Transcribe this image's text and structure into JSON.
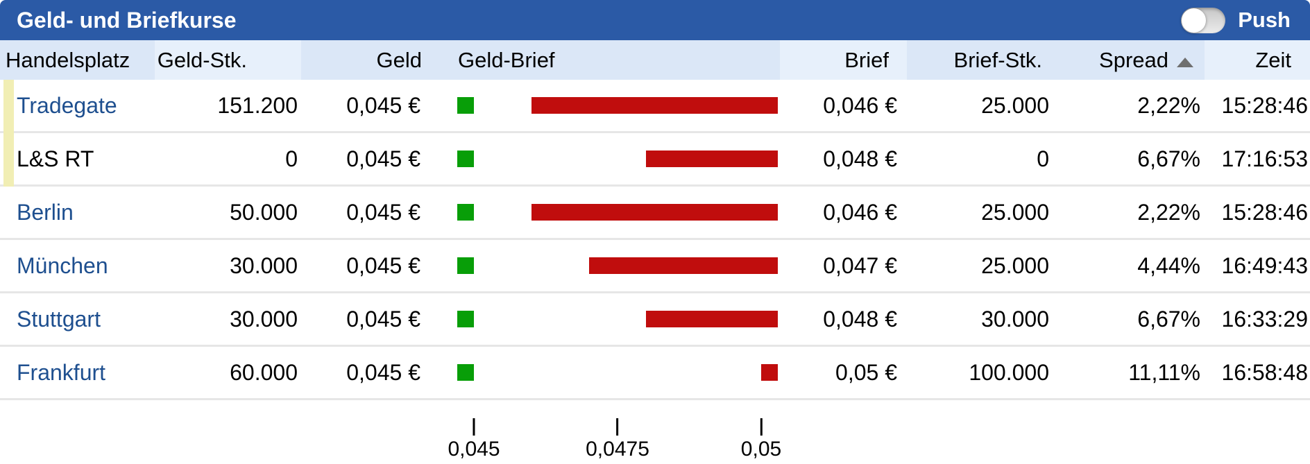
{
  "title_bar": {
    "title": "Geld- und Briefkurse",
    "push_label": "Push",
    "push_state": "off"
  },
  "table": {
    "columns": [
      "Handelsplatz",
      "Geld-Stk.",
      "Geld",
      "Geld-Brief",
      "Brief",
      "Brief-Stk.",
      "Spread",
      "Zeit"
    ],
    "sort": {
      "column": "Spread",
      "direction": "ascending"
    },
    "rows": [
      {
        "name": "Tradegate",
        "link": true,
        "marked": true,
        "geld_stk": "151.200",
        "geld": "0,045 €",
        "geld_value": 0.045,
        "brief": "0,046 €",
        "brief_value": 0.046,
        "brief_stk": "25.000",
        "spread": "2,22%",
        "zeit": "15:28:46"
      },
      {
        "name": "L&S RT",
        "link": false,
        "marked": true,
        "geld_stk": "0",
        "geld": "0,045 €",
        "geld_value": 0.045,
        "brief": "0,048 €",
        "brief_value": 0.048,
        "brief_stk": "0",
        "spread": "6,67%",
        "zeit": "17:16:53"
      },
      {
        "name": "Berlin",
        "link": true,
        "marked": false,
        "geld_stk": "50.000",
        "geld": "0,045 €",
        "geld_value": 0.045,
        "brief": "0,046 €",
        "brief_value": 0.046,
        "brief_stk": "25.000",
        "spread": "2,22%",
        "zeit": "15:28:46"
      },
      {
        "name": "München",
        "link": true,
        "marked": false,
        "geld_stk": "30.000",
        "geld": "0,045 €",
        "geld_value": 0.045,
        "brief": "0,047 €",
        "brief_value": 0.047,
        "brief_stk": "25.000",
        "spread": "4,44%",
        "zeit": "16:49:43"
      },
      {
        "name": "Stuttgart",
        "link": true,
        "marked": false,
        "geld_stk": "30.000",
        "geld": "0,045 €",
        "geld_value": 0.045,
        "brief": "0,048 €",
        "brief_value": 0.048,
        "brief_stk": "30.000",
        "spread": "6,67%",
        "zeit": "16:33:29"
      },
      {
        "name": "Frankfurt",
        "link": true,
        "marked": false,
        "geld_stk": "60.000",
        "geld": "0,045 €",
        "geld_value": 0.045,
        "brief": "0,05 €",
        "brief_value": 0.05,
        "brief_stk": "100.000",
        "spread": "11,11%",
        "zeit": "16:58:48"
      }
    ]
  },
  "chart_data": {
    "type": "bar",
    "title": "Geld-Brief",
    "categories": [
      "Tradegate",
      "L&S RT",
      "Berlin",
      "München",
      "Stuttgart",
      "Frankfurt"
    ],
    "x_axis": {
      "min": 0.045,
      "max": 0.05,
      "ticks": [
        {
          "value": 0.045,
          "label": "0,045"
        },
        {
          "value": 0.0475,
          "label": "0,0475"
        },
        {
          "value": 0.05,
          "label": "0,05"
        }
      ]
    },
    "series": [
      {
        "name": "Geld",
        "marker": "square",
        "color": "#089e08",
        "values": [
          0.045,
          0.045,
          0.045,
          0.045,
          0.045,
          0.045
        ]
      },
      {
        "name": "Brief",
        "type": "range-bar",
        "color": "#c00d0d",
        "from": [
          0.046,
          0.048,
          0.046,
          0.047,
          0.048,
          0.05
        ],
        "to": 0.05
      }
    ],
    "legend": "none",
    "grid": false
  },
  "colors": {
    "titlebar_blue": "#2b5aa6",
    "header_bg": "#dbe7f7",
    "header_bg_light": "#e7f0fb",
    "link_blue": "#1e4f8f",
    "geld_green": "#089e08",
    "brief_red": "#c00d0d",
    "mark_yellow": "#f1eeb4",
    "separator_gray": "#e6e6e6"
  }
}
